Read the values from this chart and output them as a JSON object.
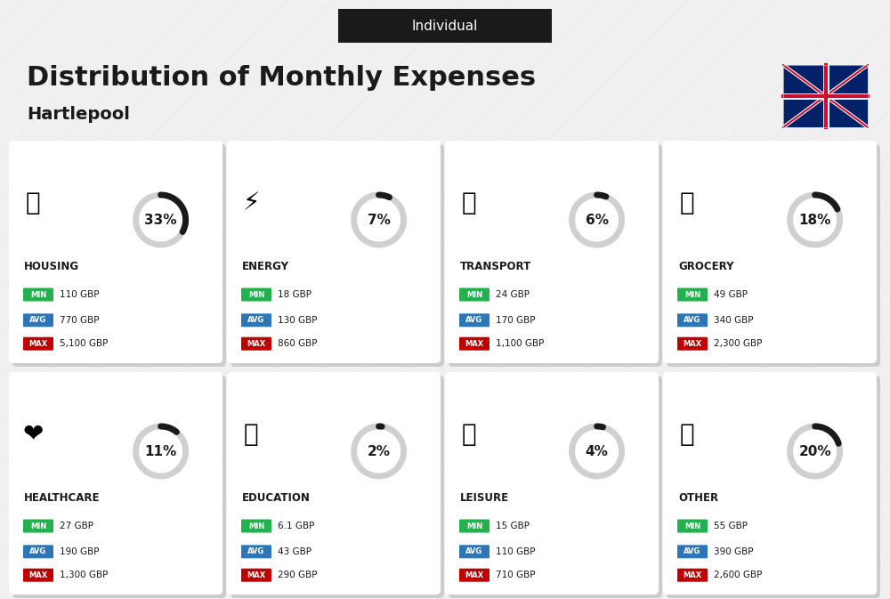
{
  "title": "Distribution of Monthly Expenses",
  "subtitle": "Individual",
  "location": "Hartlepool",
  "background_color": "#f0f0f0",
  "categories": [
    {
      "name": "HOUSING",
      "percent": 33,
      "min_val": "110 GBP",
      "avg_val": "770 GBP",
      "max_val": "5,100 GBP",
      "col": 0,
      "row": 0
    },
    {
      "name": "ENERGY",
      "percent": 7,
      "min_val": "18 GBP",
      "avg_val": "130 GBP",
      "max_val": "860 GBP",
      "col": 1,
      "row": 0
    },
    {
      "name": "TRANSPORT",
      "percent": 6,
      "min_val": "24 GBP",
      "avg_val": "170 GBP",
      "max_val": "1,100 GBP",
      "col": 2,
      "row": 0
    },
    {
      "name": "GROCERY",
      "percent": 18,
      "min_val": "49 GBP",
      "avg_val": "340 GBP",
      "max_val": "2,300 GBP",
      "col": 3,
      "row": 0
    },
    {
      "name": "HEALTHCARE",
      "percent": 11,
      "min_val": "27 GBP",
      "avg_val": "190 GBP",
      "max_val": "1,300 GBP",
      "col": 0,
      "row": 1
    },
    {
      "name": "EDUCATION",
      "percent": 2,
      "min_val": "6.1 GBP",
      "avg_val": "43 GBP",
      "max_val": "290 GBP",
      "col": 1,
      "row": 1
    },
    {
      "name": "LEISURE",
      "percent": 4,
      "min_val": "15 GBP",
      "avg_val": "110 GBP",
      "max_val": "710 GBP",
      "col": 2,
      "row": 1
    },
    {
      "name": "OTHER",
      "percent": 20,
      "min_val": "55 GBP",
      "avg_val": "390 GBP",
      "max_val": "2,600 GBP",
      "col": 3,
      "row": 1
    }
  ],
  "min_color": "#22b14c",
  "avg_color": "#2e75b6",
  "max_color": "#c00000",
  "label_color": "#ffffff",
  "text_color": "#1a1a1a",
  "arc_filled_color": "#1a1a1a",
  "arc_empty_color": "#d0d0d0",
  "cell_bg_color": "#ffffff",
  "cell_shadow_color": "#cccccc",
  "header_bg": "#1a1a1a",
  "header_fg": "#ffffff"
}
